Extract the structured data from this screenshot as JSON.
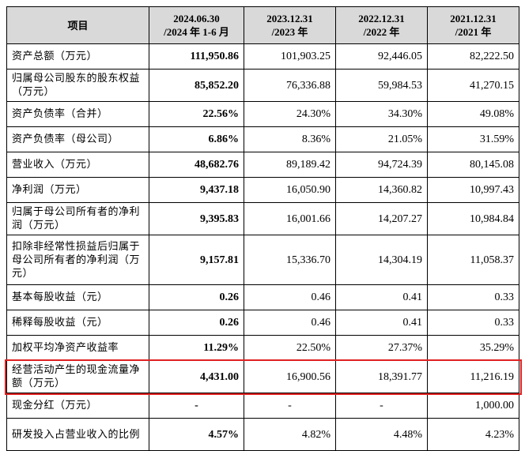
{
  "headers": [
    {
      "line1": "项目",
      "line2": ""
    },
    {
      "line1": "2024.06.30",
      "line2": "/2024 年 1-6 月"
    },
    {
      "line1": "2023.12.31",
      "line2": "/2023 年"
    },
    {
      "line1": "2022.12.31",
      "line2": "/2022 年"
    },
    {
      "line1": "2021.12.31",
      "line2": "/2021 年"
    }
  ],
  "rows": [
    {
      "label": "资产总额（万元）",
      "v2024": "111,950.86",
      "v2023": "101,903.25",
      "v2022": "92,446.05",
      "v2021": "82,222.50"
    },
    {
      "label": "归属母公司股东的股东权益（万元）",
      "v2024": "85,852.20",
      "v2023": "76,336.88",
      "v2022": "59,984.53",
      "v2021": "41,270.15"
    },
    {
      "label": "资产负债率（合并）",
      "v2024": "22.56%",
      "v2023": "24.30%",
      "v2022": "34.30%",
      "v2021": "49.08%"
    },
    {
      "label": "资产负债率（母公司）",
      "v2024": "6.86%",
      "v2023": "8.36%",
      "v2022": "21.05%",
      "v2021": "31.59%"
    },
    {
      "label": "营业收入（万元）",
      "v2024": "48,682.76",
      "v2023": "89,189.42",
      "v2022": "94,724.39",
      "v2021": "80,145.08"
    },
    {
      "label": "净利润（万元）",
      "v2024": "9,437.18",
      "v2023": "16,050.90",
      "v2022": "14,360.82",
      "v2021": "10,997.43"
    },
    {
      "label": "归属于母公司所有者的净利润（万元）",
      "v2024": "9,395.83",
      "v2023": "16,001.66",
      "v2022": "14,207.27",
      "v2021": "10,984.84"
    },
    {
      "label": "扣除非经常性损益后归属于母公司所有者的净利润（万元）",
      "v2024": "9,157.81",
      "v2023": "15,336.70",
      "v2022": "14,304.19",
      "v2021": "11,058.37"
    },
    {
      "label": "基本每股收益（元）",
      "v2024": "0.26",
      "v2023": "0.46",
      "v2022": "0.41",
      "v2021": "0.33"
    },
    {
      "label": "稀释每股收益（元）",
      "v2024": "0.26",
      "v2023": "0.46",
      "v2022": "0.41",
      "v2021": "0.33"
    },
    {
      "label": "加权平均净资产收益率",
      "v2024": "11.29%",
      "v2023": "22.50%",
      "v2022": "27.37%",
      "v2021": "35.29%"
    },
    {
      "label": "经营活动产生的现金流量净额（万元）",
      "v2024": "4,431.00",
      "v2023": "16,900.56",
      "v2022": "18,391.77",
      "v2021": "11,216.19"
    },
    {
      "label": "现金分红（万元）",
      "v2024": "-",
      "v2023": "-",
      "v2022": "-",
      "v2021": "1,000.00"
    },
    {
      "label": "研发投入占营业收入的比例",
      "v2024": "4.57%",
      "v2023": "4.82%",
      "v2022": "4.48%",
      "v2021": "4.23%"
    }
  ],
  "highlight_color": "#e02020",
  "header_background": "#d9d9d9"
}
